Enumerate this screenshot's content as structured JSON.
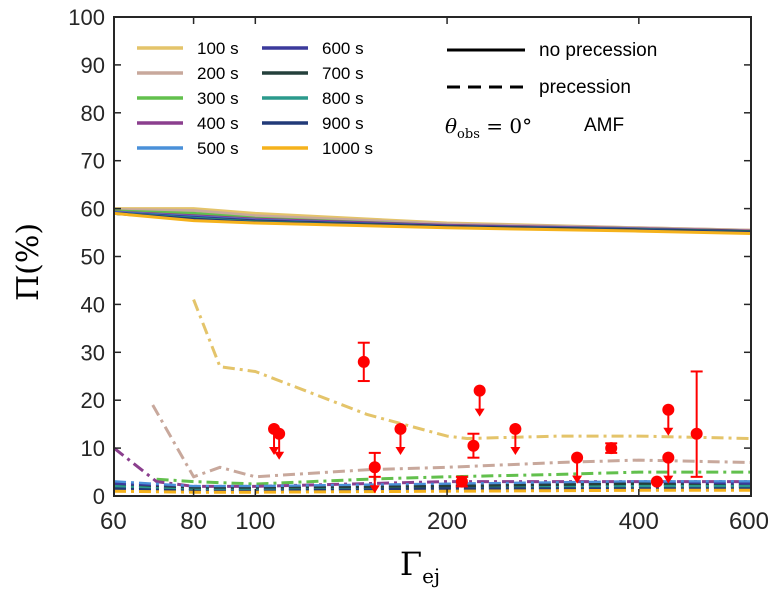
{
  "chart_data": {
    "type": "line",
    "title": "",
    "xlabel": {
      "main": "Γ",
      "sub": "ej"
    },
    "ylabel": "Π(%)",
    "xscale": "log",
    "xlim": [
      60,
      600
    ],
    "ylim": [
      0,
      100
    ],
    "xticks": [
      60,
      80,
      100,
      200,
      400,
      600
    ],
    "xtick_labels": [
      "60",
      "80",
      "100",
      "200",
      "400",
      "600"
    ],
    "yticks": [
      0,
      10,
      20,
      30,
      40,
      50,
      60,
      70,
      80,
      90,
      100
    ],
    "ytick_labels": [
      "0",
      "10",
      "20",
      "30",
      "40",
      "50",
      "60",
      "70",
      "80",
      "90",
      "100"
    ],
    "grid": false,
    "legend": {
      "placement": "top-left",
      "items": [
        "100 s",
        "200 s",
        "300 s",
        "400 s",
        "500 s",
        "600 s",
        "700 s",
        "800 s",
        "900 s",
        "1000 s"
      ]
    },
    "style_legend": {
      "solid": "no precession",
      "dashed": "precession"
    },
    "annotation_theta": {
      "lhs": "θ",
      "sub": "obs",
      "rhs": " = 0°"
    },
    "annotation_model": "AMF",
    "series_colors": [
      "#e4c46a",
      "#c8a89c",
      "#62c04d",
      "#8b3f8e",
      "#4a90d9",
      "#3b3a9c",
      "#24403b",
      "#2b9a8c",
      "#223a78",
      "#f5b21c"
    ],
    "series": [
      {
        "name": "100 s",
        "color": "#e4c46a",
        "no_precession": {
          "x": [
            60,
            80,
            100,
            200,
            400,
            600
          ],
          "y": [
            60,
            60,
            59,
            57,
            56,
            55.5
          ]
        },
        "precession": {
          "x": [
            80,
            88,
            100,
            150,
            200,
            215,
            300,
            400,
            600
          ],
          "y": [
            41,
            27,
            26,
            17,
            12.5,
            12,
            12.5,
            12.5,
            12
          ]
        }
      },
      {
        "name": "200 s",
        "color": "#c8a89c",
        "no_precession": {
          "x": [
            60,
            80,
            100,
            200,
            400,
            600
          ],
          "y": [
            59.8,
            59.6,
            58.5,
            56.8,
            56,
            55.5
          ]
        },
        "precession": {
          "x": [
            69,
            80,
            88,
            100,
            150,
            200,
            300,
            400,
            600
          ],
          "y": [
            19,
            4,
            6,
            4,
            5.5,
            6,
            7,
            7.5,
            7
          ]
        }
      },
      {
        "name": "300 s",
        "color": "#62c04d",
        "no_precession": {
          "x": [
            60,
            80,
            100,
            200,
            400,
            600
          ],
          "y": [
            59.5,
            59,
            58,
            56.5,
            55.8,
            55.3
          ]
        },
        "precession": {
          "x": [
            70,
            80,
            100,
            150,
            200,
            300,
            400,
            600
          ],
          "y": [
            3.5,
            3,
            2.5,
            3.5,
            4,
            4.5,
            5,
            5
          ]
        }
      },
      {
        "name": "400 s",
        "color": "#8b3f8e",
        "no_precession": {
          "x": [
            60,
            80,
            100,
            200,
            400,
            600
          ],
          "y": [
            59.3,
            58.5,
            57.8,
            56.5,
            55.8,
            55.3
          ]
        },
        "precession": {
          "x": [
            60,
            70,
            80,
            100,
            200,
            400,
            600
          ],
          "y": [
            10,
            3,
            2,
            2,
            3,
            3,
            3
          ]
        }
      },
      {
        "name": "500 s",
        "color": "#4a90d9",
        "no_precession": {
          "x": [
            60,
            80,
            100,
            200,
            400,
            600
          ],
          "y": [
            59.2,
            58.3,
            57.6,
            56.3,
            55.7,
            55.2
          ]
        },
        "precession": {
          "x": [
            60,
            80,
            100,
            200,
            400,
            600
          ],
          "y": [
            3,
            2,
            2,
            2.5,
            3,
            3
          ]
        }
      },
      {
        "name": "600 s",
        "color": "#3b3a9c",
        "no_precession": {
          "x": [
            60,
            80,
            100,
            200,
            400,
            600
          ],
          "y": [
            59.1,
            58.2,
            57.5,
            56.3,
            55.6,
            55.2
          ]
        },
        "precession": {
          "x": [
            60,
            80,
            100,
            200,
            400,
            600
          ],
          "y": [
            2.5,
            1.5,
            1.5,
            2,
            2.5,
            2.5
          ]
        }
      },
      {
        "name": "700 s",
        "color": "#24403b",
        "no_precession": {
          "x": [
            60,
            80,
            100,
            200,
            400,
            600
          ],
          "y": [
            59,
            58,
            57.3,
            56.2,
            55.6,
            55.2
          ]
        },
        "precession": {
          "x": [
            60,
            80,
            100,
            200,
            400,
            600
          ],
          "y": [
            2,
            1.5,
            1.5,
            2,
            2.5,
            2
          ]
        }
      },
      {
        "name": "800 s",
        "color": "#2b9a8c",
        "no_precession": {
          "x": [
            60,
            80,
            100,
            200,
            400,
            600
          ],
          "y": [
            59,
            58,
            57.2,
            56.1,
            55.5,
            55.1
          ]
        },
        "precession": {
          "x": [
            60,
            80,
            100,
            200,
            400,
            600
          ],
          "y": [
            2,
            1.2,
            1.2,
            1.5,
            2,
            2
          ]
        }
      },
      {
        "name": "900 s",
        "color": "#223a78",
        "no_precession": {
          "x": [
            60,
            80,
            100,
            200,
            400,
            600
          ],
          "y": [
            59,
            57.8,
            57.1,
            56.1,
            55.5,
            55
          ]
        },
        "precession": {
          "x": [
            60,
            80,
            100,
            200,
            400,
            600
          ],
          "y": [
            1.5,
            1,
            1,
            1.5,
            1.5,
            1.5
          ]
        }
      },
      {
        "name": "1000 s",
        "color": "#f5b21c",
        "no_precession": {
          "x": [
            60,
            80,
            100,
            200,
            400,
            600
          ],
          "y": [
            59,
            57.5,
            57,
            56,
            55.3,
            54.8
          ]
        },
        "precession": {
          "x": [
            60,
            80,
            100,
            200,
            400,
            600
          ],
          "y": [
            1,
            0.8,
            0.8,
            1,
            1.2,
            1.2
          ]
        }
      }
    ],
    "observations": {
      "color": "#ff0000",
      "points": [
        {
          "x": 148,
          "y": 28,
          "yerr_low": 4,
          "yerr_high": 4,
          "upper_limit": false
        },
        {
          "x": 107,
          "y": 14,
          "upper_limit": true
        },
        {
          "x": 109,
          "y": 13,
          "upper_limit": true
        },
        {
          "x": 154,
          "y": 6,
          "yerr_low": 2,
          "yerr_high": 3,
          "upper_limit": true
        },
        {
          "x": 169,
          "y": 14,
          "upper_limit": true
        },
        {
          "x": 211,
          "y": 3,
          "yerr_low": 1,
          "yerr_high": 1,
          "upper_limit": false
        },
        {
          "x": 220,
          "y": 10.5,
          "yerr_low": 2.5,
          "yerr_high": 2.5,
          "upper_limit": false
        },
        {
          "x": 225,
          "y": 22,
          "upper_limit": true
        },
        {
          "x": 256,
          "y": 14,
          "upper_limit": true
        },
        {
          "x": 320,
          "y": 8,
          "upper_limit": true
        },
        {
          "x": 362,
          "y": 10,
          "yerr_low": 1,
          "yerr_high": 1,
          "upper_limit": false
        },
        {
          "x": 427,
          "y": 3,
          "upper_limit": false
        },
        {
          "x": 445,
          "y": 18,
          "upper_limit": true
        },
        {
          "x": 445,
          "y": 8,
          "upper_limit": true
        },
        {
          "x": 493,
          "y": 13,
          "yerr_low": 9,
          "yerr_high": 13,
          "upper_limit": false
        }
      ]
    }
  }
}
